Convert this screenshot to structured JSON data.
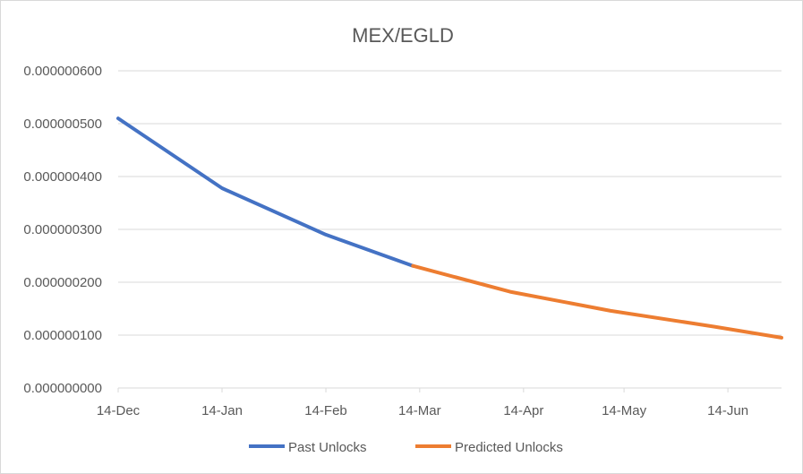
{
  "chart_data": {
    "type": "line",
    "title": "MEX/EGLD",
    "xlabel": "",
    "ylabel": "",
    "x_ticks": [
      "14-Dec",
      "14-Jan",
      "14-Feb",
      "14-Mar",
      "14-Apr",
      "14-May",
      "14-Jun"
    ],
    "y_ticks": [
      "0.000000000",
      "0.000000100",
      "0.000000200",
      "0.000000300",
      "0.000000400",
      "0.000000500",
      "0.000000600"
    ],
    "ylim": [
      0,
      6e-07
    ],
    "xlim": [
      "2021-12-14",
      "2022-06-30"
    ],
    "grid": true,
    "legend": "bottom",
    "series": [
      {
        "name": "Past Unlocks",
        "color": "#4472c4",
        "points": [
          {
            "x": "2021-12-14",
            "y": 5.1e-07
          },
          {
            "x": "2022-01-14",
            "y": 3.78e-07
          },
          {
            "x": "2022-02-14",
            "y": 2.9e-07
          },
          {
            "x": "2022-03-12",
            "y": 2.31e-07
          }
        ]
      },
      {
        "name": "Predicted Unlocks",
        "color": "#ed7d31",
        "points": [
          {
            "x": "2022-03-12",
            "y": 2.31e-07
          },
          {
            "x": "2022-04-10",
            "y": 1.82e-07
          },
          {
            "x": "2022-05-10",
            "y": 1.46e-07
          },
          {
            "x": "2022-06-10",
            "y": 1.16e-07
          },
          {
            "x": "2022-06-30",
            "y": 9.5e-08
          }
        ]
      }
    ]
  }
}
